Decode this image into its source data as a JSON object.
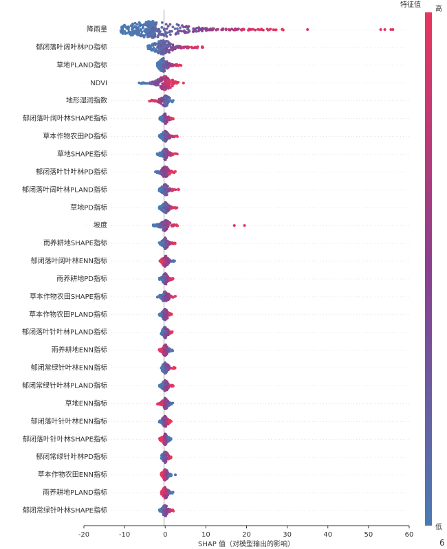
{
  "chart_data": {
    "type": "scatter",
    "subtype": "shap-beeswarm",
    "xlabel": "SHAP 值（对模型输出的影响）",
    "xlim": [
      -20,
      60
    ],
    "xticks": [
      "-20",
      "-10",
      "0",
      "10",
      "20",
      "30",
      "40",
      "50",
      "60"
    ],
    "colorbar": {
      "title": "特征值",
      "high_label": "高",
      "low_label": "低",
      "high_color": "#e8365f",
      "low_color": "#4a7bb2"
    },
    "extra_text": "6",
    "features": [
      {
        "name": "降雨量",
        "min": -11,
        "max": 31,
        "mode": -3,
        "trend": "positive",
        "outliers": [
          35,
          53,
          54,
          55.5,
          56
        ]
      },
      {
        "name": "郁闭落叶阔叶林PD指标",
        "min": -4.5,
        "max": 9.5,
        "mode": -0.5,
        "trend": "positive",
        "outliers": []
      },
      {
        "name": "草地PLAND指标",
        "min": -2,
        "max": 4,
        "mode": -0.5,
        "trend": "positive",
        "outliers": []
      },
      {
        "name": "NDVI",
        "min": -6.5,
        "max": 3.5,
        "mode": 0,
        "trend": "positive",
        "outliers": [
          4.5
        ]
      },
      {
        "name": "地形湿润指数",
        "min": -4,
        "max": 2,
        "mode": 0,
        "trend": "negative",
        "outliers": []
      },
      {
        "name": "郁闭落叶阔叶林SHAPE指标",
        "min": -1.5,
        "max": 2,
        "mode": 0,
        "trend": "positive",
        "outliers": []
      },
      {
        "name": "草本作物农田PD指标",
        "min": -1.5,
        "max": 3,
        "mode": 0,
        "trend": "positive",
        "outliers": []
      },
      {
        "name": "草地SHAPE指标",
        "min": -2,
        "max": 3,
        "mode": 0,
        "trend": "positive",
        "outliers": []
      },
      {
        "name": "郁闭落叶针叶林PD指标",
        "min": -2.5,
        "max": 2.5,
        "mode": 0,
        "trend": "positive",
        "outliers": []
      },
      {
        "name": "郁闭落叶阔叶林PLAND指标",
        "min": -1.5,
        "max": 3.5,
        "mode": 0,
        "trend": "positive",
        "outliers": []
      },
      {
        "name": "草地PD指标",
        "min": -1.5,
        "max": 3,
        "mode": 0,
        "trend": "positive",
        "outliers": []
      },
      {
        "name": "坡度",
        "min": -3,
        "max": 3.5,
        "mode": 0,
        "trend": "positive",
        "outliers": [
          17,
          19.5
        ]
      },
      {
        "name": "雨养耕地SHAPE指标",
        "min": -1.5,
        "max": 2.5,
        "mode": 0,
        "trend": "positive",
        "outliers": []
      },
      {
        "name": "郁闭落叶阔叶林ENN指标",
        "min": -1.5,
        "max": 2.5,
        "mode": 0,
        "trend": "negative",
        "outliers": []
      },
      {
        "name": "雨养耕地PD指标",
        "min": -1.5,
        "max": 2,
        "mode": 0,
        "trend": "positive",
        "outliers": []
      },
      {
        "name": "草本作物农田SHAPE指标",
        "min": -2,
        "max": 3,
        "mode": 0,
        "trend": "positive",
        "outliers": []
      },
      {
        "name": "草本作物农田PLAND指标",
        "min": -1.5,
        "max": 2,
        "mode": 0,
        "trend": "positive",
        "outliers": []
      },
      {
        "name": "郁闭落叶针叶林PLAND指标",
        "min": -1,
        "max": 2,
        "mode": 0,
        "trend": "positive",
        "outliers": []
      },
      {
        "name": "雨养耕地ENN指标",
        "min": -1.5,
        "max": 2,
        "mode": 0,
        "trend": "negative",
        "outliers": []
      },
      {
        "name": "郁闭常绿针叶林ENN指标",
        "min": -1,
        "max": 2.5,
        "mode": 0,
        "trend": "positive",
        "outliers": []
      },
      {
        "name": "郁闭常绿针叶林PLAND指标",
        "min": -1.5,
        "max": 2,
        "mode": 0,
        "trend": "positive",
        "outliers": []
      },
      {
        "name": "草地ENN指标",
        "min": -2,
        "max": 2,
        "mode": 0,
        "trend": "negative",
        "outliers": []
      },
      {
        "name": "郁闭落叶针叶林ENN指标",
        "min": -1.5,
        "max": 1.5,
        "mode": 0,
        "trend": "positive",
        "outliers": []
      },
      {
        "name": "郁闭落叶针叶林SHAPE指标",
        "min": -1.5,
        "max": 1.5,
        "mode": 0,
        "trend": "negative",
        "outliers": []
      },
      {
        "name": "郁闭常绿针叶林PD指标",
        "min": -1,
        "max": 1.5,
        "mode": 0,
        "trend": "positive",
        "outliers": []
      },
      {
        "name": "草本作物农田ENN指标",
        "min": -1,
        "max": 1.5,
        "mode": 0,
        "trend": "negative",
        "outliers": [
          2.5
        ]
      },
      {
        "name": "雨养耕地PLAND指标",
        "min": -1,
        "max": 2,
        "mode": 0,
        "trend": "negative",
        "outliers": []
      },
      {
        "name": "郁闭常绿针叶林SHAPE指标",
        "min": -1.5,
        "max": 2,
        "mode": 0,
        "trend": "positive",
        "outliers": []
      }
    ]
  }
}
